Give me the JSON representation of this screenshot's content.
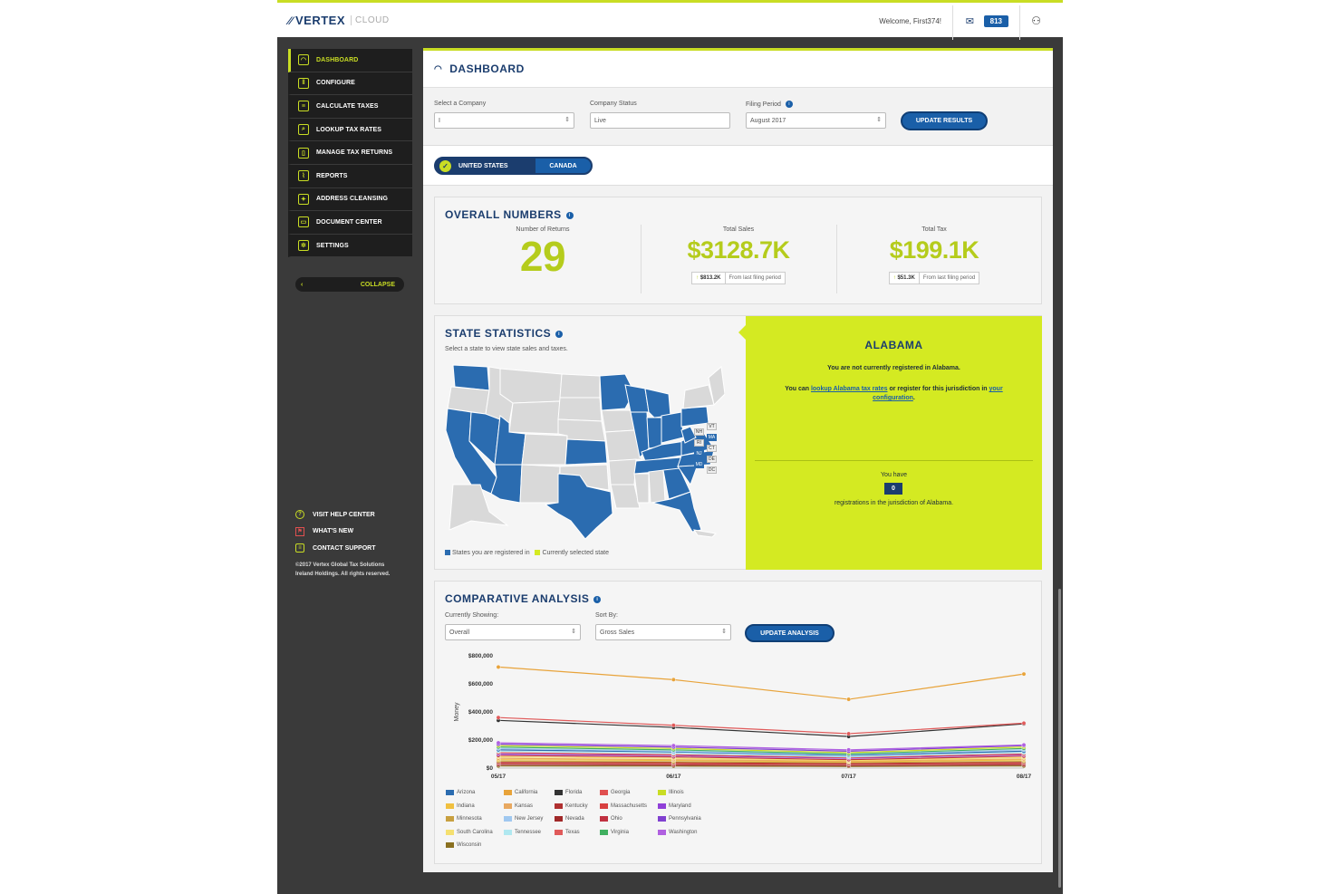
{
  "header": {
    "brand": "VERTEX",
    "brand_sub": "CLOUD",
    "welcome": "Welcome, First374!",
    "badge_count": "813",
    "mail_icon": "mail-icon",
    "user_icon": "user-icon"
  },
  "sidebar": {
    "items": [
      {
        "label": "DASHBOARD",
        "icon": "dashboard-icon"
      },
      {
        "label": "CONFIGURE",
        "icon": "configure-icon"
      },
      {
        "label": "CALCULATE TAXES",
        "icon": "calculator-icon"
      },
      {
        "label": "LOOKUP TAX RATES",
        "icon": "lookup-icon"
      },
      {
        "label": "MANAGE TAX RETURNS",
        "icon": "returns-icon"
      },
      {
        "label": "REPORTS",
        "icon": "reports-icon"
      },
      {
        "label": "ADDRESS CLEANSING",
        "icon": "address-icon"
      },
      {
        "label": "DOCUMENT CENTER",
        "icon": "document-icon"
      },
      {
        "label": "SETTINGS",
        "icon": "gear-icon"
      }
    ],
    "collapse": "COLLAPSE",
    "footer_links": [
      {
        "label": "VISIT HELP CENTER",
        "icon": "help-icon"
      },
      {
        "label": "WHAT'S NEW",
        "icon": "flag-icon"
      },
      {
        "label": "CONTACT SUPPORT",
        "icon": "chat-icon"
      }
    ],
    "copyright_line1": "©2017 Vertex Global Tax Solutions",
    "copyright_line2": "Ireland Holdings. All rights reserved."
  },
  "main": {
    "title": "DASHBOARD",
    "filters": {
      "company_label": "Select a Company",
      "company_value": "I",
      "status_label": "Company Status",
      "status_value": "Live",
      "period_label": "Filing Period",
      "period_value": "August 2017",
      "update_button": "UPDATE RESULTS"
    },
    "country_toggle": {
      "selected": "UNITED STATES",
      "other": "CANADA"
    },
    "overall": {
      "title": "OVERALL NUMBERS",
      "returns_label": "Number of Returns",
      "returns_value": "29",
      "sales_label": "Total Sales",
      "sales_value": "$3128.7K",
      "sales_change": "$813.2K",
      "sales_change_note": "From last filing period",
      "tax_label": "Total Tax",
      "tax_value": "$199.1K",
      "tax_change": "$51.3K",
      "tax_change_note": "From last filing period"
    },
    "state_stats": {
      "title": "STATE STATISTICS",
      "subtitle": "Select a state to view state sales and taxes.",
      "legend_registered": "States you are registered in",
      "legend_selected": "Currently selected state",
      "small_states": [
        "VT",
        "NH",
        "MA",
        "RI",
        "CT",
        "NJ",
        "DE",
        "MD",
        "DC"
      ],
      "colors": {
        "registered": "#2b6cb0",
        "unregistered": "#d9d9d9",
        "selected": "#d4ea22"
      },
      "selected_state": "ALABAMA",
      "not_registered": "You are not currently registered in Alabama.",
      "lookup_pre": "You can ",
      "lookup_link": "lookup Alabama tax rates",
      "lookup_mid": " or register for this jurisdiction in ",
      "config_link1": "your",
      "config_link2": "configuration",
      "config_end": ".",
      "you_have": "You have",
      "registration_count": "0",
      "registrations_note": "registrations in the jurisdiction of Alabama."
    },
    "comparative": {
      "title": "COMPARATIVE ANALYSIS",
      "showing_label": "Currently Showing:",
      "showing_value": "Overall",
      "sort_label": "Sort By:",
      "sort_value": "Gross Sales",
      "update_button": "UPDATE ANALYSIS"
    }
  },
  "chart_data": {
    "type": "line",
    "ylabel": "Money",
    "ylim": [
      0,
      800000
    ],
    "yticks": [
      "$800,000",
      "$600,000",
      "$400,000",
      "$200,000",
      "$0"
    ],
    "categories": [
      "05/17",
      "06/17",
      "07/17",
      "08/17"
    ],
    "series": [
      {
        "name": "California",
        "color": "#e8a33a",
        "values": [
          720000,
          630000,
          490000,
          670000
        ]
      },
      {
        "name": "Texas",
        "color": "#e05a5a",
        "values": [
          360000,
          305000,
          245000,
          320000
        ]
      },
      {
        "name": "Florida",
        "color": "#333333",
        "values": [
          340000,
          290000,
          225000,
          315000
        ]
      },
      {
        "name": "Washington",
        "color": "#b060e0",
        "values": [
          180000,
          160000,
          130000,
          165000
        ]
      },
      {
        "name": "Pennsylvania",
        "color": "#8040d0",
        "values": [
          170000,
          150000,
          120000,
          160000
        ]
      },
      {
        "name": "Illinois",
        "color": "#c9dd24",
        "values": [
          160000,
          140000,
          110000,
          150000
        ]
      },
      {
        "name": "Virginia",
        "color": "#40b060",
        "values": [
          150000,
          130000,
          100000,
          140000
        ]
      },
      {
        "name": "New Jersey",
        "color": "#a0c8f0",
        "values": [
          140000,
          120000,
          95000,
          130000
        ]
      },
      {
        "name": "Arizona",
        "color": "#2b6cb0",
        "values": [
          130000,
          115000,
          90000,
          120000
        ]
      },
      {
        "name": "Tennessee",
        "color": "#b0e8f0",
        "values": [
          120000,
          105000,
          80000,
          110000
        ]
      },
      {
        "name": "Georgia",
        "color": "#e05050",
        "values": [
          110000,
          95000,
          75000,
          100000
        ]
      },
      {
        "name": "Maryland",
        "color": "#9040d8",
        "values": [
          100000,
          90000,
          70000,
          95000
        ]
      },
      {
        "name": "Ohio",
        "color": "#c03040",
        "values": [
          90000,
          80000,
          60000,
          85000
        ]
      },
      {
        "name": "South Carolina",
        "color": "#f5e070",
        "values": [
          80000,
          70000,
          55000,
          75000
        ]
      },
      {
        "name": "Kansas",
        "color": "#e8a860",
        "values": [
          70000,
          60000,
          50000,
          65000
        ]
      },
      {
        "name": "Indiana",
        "color": "#f0c040",
        "values": [
          60000,
          55000,
          45000,
          58000
        ]
      },
      {
        "name": "Minnesota",
        "color": "#c8a040",
        "values": [
          50000,
          45000,
          40000,
          48000
        ]
      },
      {
        "name": "Kentucky",
        "color": "#b03030",
        "values": [
          40000,
          38000,
          32000,
          40000
        ]
      },
      {
        "name": "Massachusetts",
        "color": "#d84040",
        "values": [
          35000,
          32000,
          28000,
          34000
        ]
      },
      {
        "name": "Nevada",
        "color": "#a02828",
        "values": [
          25000,
          22000,
          18000,
          24000
        ]
      },
      {
        "name": "Wisconsin",
        "color": "#8a7020",
        "values": [
          15000,
          14000,
          12000,
          15000
        ]
      }
    ],
    "legend_columns": [
      [
        "Arizona",
        "Indiana",
        "Minnesota",
        "South Carolina",
        "Wisconsin"
      ],
      [
        "California",
        "Kansas",
        "New Jersey",
        "Tennessee"
      ],
      [
        "Florida",
        "Kentucky",
        "Nevada",
        "Texas"
      ],
      [
        "Georgia",
        "Massachusetts",
        "Ohio",
        "Virginia"
      ],
      [
        "Illinois",
        "Maryland",
        "Pennsylvania",
        "Washington"
      ]
    ]
  }
}
